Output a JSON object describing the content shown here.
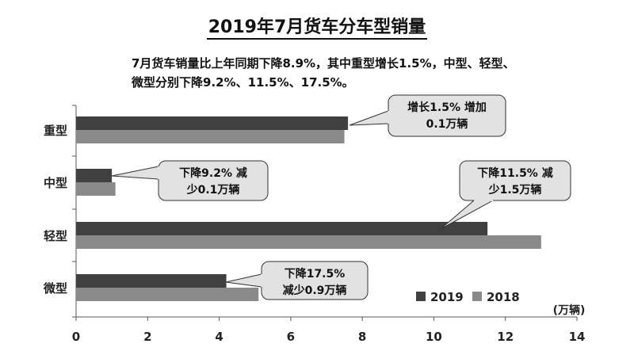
{
  "chart_data": {
    "type": "bar",
    "orientation": "horizontal",
    "title": "2019年7月货车分车型销量",
    "subtitle_lines": [
      "7月货车销量比上年同期下降8.9%，其中重型增长1.5%，中型、轻型、",
      "微型分别下降9.2%、11.5%、17.5%。"
    ],
    "categories": [
      "重型",
      "中型",
      "轻型",
      "微型"
    ],
    "series": [
      {
        "name": "2019",
        "color": "#404040",
        "values": [
          7.6,
          1.0,
          11.5,
          4.2
        ]
      },
      {
        "name": "2018",
        "color": "#8a8a8a",
        "values": [
          7.5,
          1.1,
          13.0,
          5.1
        ]
      }
    ],
    "xlim": [
      0,
      14
    ],
    "xticks": [
      "0",
      "2",
      "4",
      "6",
      "8",
      "10",
      "12",
      "14"
    ],
    "unit_label": "(万辆)",
    "legend_position": "bottom-right",
    "grid": false,
    "callouts": [
      {
        "category": "重型",
        "lines": [
          "增长1.5% 增加",
          "0.1万辆"
        ]
      },
      {
        "category": "中型",
        "lines": [
          "下降9.2% 减",
          "少0.1万辆"
        ]
      },
      {
        "category": "轻型",
        "lines": [
          "下降11.5% 减",
          "少1.5万辆"
        ]
      },
      {
        "category": "微型",
        "lines": [
          "下降17.5%",
          "减少0.9万辆"
        ]
      }
    ]
  }
}
